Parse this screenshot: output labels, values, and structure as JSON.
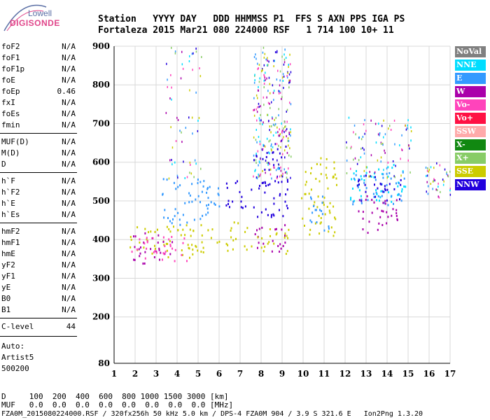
{
  "logo": {
    "line1": "Lowell",
    "line2": "DIGISONDE",
    "accent_color": "#e0458a",
    "text_color": "#5b6fa5"
  },
  "header": {
    "line1": "Station   YYYY DAY   DDD HHMMSS P1  FFS S AXN PPS IGA PS",
    "line2": "Fortaleza 2015 Mar21 080 224000 RSF   1 714 100 10+ 11"
  },
  "params": [
    {
      "name": "foF2",
      "value": "N/A"
    },
    {
      "name": "foF1",
      "value": "N/A"
    },
    {
      "name": "foF1p",
      "value": "N/A"
    },
    {
      "name": "foE",
      "value": "N/A"
    },
    {
      "name": "foEp",
      "value": "0.46"
    },
    {
      "name": "fxI",
      "value": "N/A"
    },
    {
      "name": "foEs",
      "value": "N/A"
    },
    {
      "name": "fmin",
      "value": "N/A"
    },
    {
      "name": "MUF(D)",
      "value": "N/A"
    },
    {
      "name": "M(D)",
      "value": "N/A"
    },
    {
      "name": "D",
      "value": "N/A"
    },
    {
      "name": "h`F",
      "value": "N/A"
    },
    {
      "name": "h`F2",
      "value": "N/A"
    },
    {
      "name": "h`E",
      "value": "N/A"
    },
    {
      "name": "h`Es",
      "value": "N/A"
    },
    {
      "name": "hmF2",
      "value": "N/A"
    },
    {
      "name": "hmF1",
      "value": "N/A"
    },
    {
      "name": "hmE",
      "value": "N/A"
    },
    {
      "name": "yF2",
      "value": "N/A"
    },
    {
      "name": "yF1",
      "value": "N/A"
    },
    {
      "name": "yE",
      "value": "N/A"
    },
    {
      "name": "B0",
      "value": "N/A"
    },
    {
      "name": "B1",
      "value": "N/A"
    },
    {
      "name": "C-level",
      "value": "44"
    }
  ],
  "auto": {
    "label": "Auto:",
    "software": "Artist5",
    "version": "500200"
  },
  "legend": [
    {
      "label": "NoVal",
      "color": "#808080"
    },
    {
      "label": "NNE",
      "color": "#00ddff"
    },
    {
      "label": "E",
      "color": "#3399ff"
    },
    {
      "label": "W",
      "color": "#aa00aa"
    },
    {
      "label": "Vo-",
      "color": "#ff44bb"
    },
    {
      "label": "Vo+",
      "color": "#ff1144"
    },
    {
      "label": "SSW",
      "color": "#ffaaaa"
    },
    {
      "label": "X-",
      "color": "#118811"
    },
    {
      "label": "X+",
      "color": "#88cc66"
    },
    {
      "label": "SSE",
      "color": "#cccc00"
    },
    {
      "label": "NNW",
      "color": "#2200dd"
    }
  ],
  "footer": {
    "d_row": "D     100  200  400  600  800 1000 1500 3000 [km]",
    "muf_row": "MUF   0.0  0.0  0.0  0.0  0.0  0.0  0.0  0.0 [MHz]",
    "file_row": "FZA0M_2015080224000.RSF / 320fx256h 50 kHz 5.0 km / DPS-4 FZA0M 904 / 3.9 S 321.6 E   Ion2Png 1.3.20"
  },
  "chart_data": {
    "type": "scatter",
    "x_ticks": [
      1,
      2,
      3,
      4,
      5,
      6,
      7,
      8,
      9,
      10,
      11,
      12,
      13,
      14,
      15,
      16,
      17
    ],
    "y_ticks": [
      80,
      200,
      300,
      400,
      500,
      600,
      700,
      800,
      900
    ],
    "xlim": [
      1,
      17
    ],
    "ylim": [
      80,
      900
    ],
    "grid": true,
    "legend_position": "right",
    "clusters": [
      {
        "direction": "SSE",
        "freq": [
          1.7,
          6.0
        ],
        "height": [
          355,
          440
        ]
      },
      {
        "direction": "W",
        "freq": [
          1.7,
          3.8
        ],
        "height": [
          340,
          420
        ]
      },
      {
        "direction": "Vo-",
        "freq": [
          1.7,
          4.5
        ],
        "height": [
          345,
          410
        ]
      },
      {
        "direction": "E",
        "freq": [
          3.2,
          6.0
        ],
        "height": [
          440,
          560
        ]
      },
      {
        "direction": "NNW",
        "freq": [
          6.3,
          7.4
        ],
        "height": [
          480,
          560
        ]
      },
      {
        "direction": "SSE",
        "freq": [
          6.3,
          7.4
        ],
        "height": [
          370,
          450
        ]
      },
      {
        "direction": "NNW",
        "freq": [
          7.5,
          9.3
        ],
        "height": [
          460,
          650
        ]
      },
      {
        "direction": "W",
        "freq": [
          7.5,
          9.3
        ],
        "height": [
          370,
          440
        ]
      },
      {
        "direction": "SSE",
        "freq": [
          7.5,
          9.3
        ],
        "height": [
          365,
          430
        ]
      },
      {
        "direction": "SSE",
        "freq": [
          9.9,
          11.6
        ],
        "height": [
          410,
          620
        ]
      },
      {
        "direction": "E",
        "freq": [
          10.3,
          11.3
        ],
        "height": [
          420,
          520
        ]
      },
      {
        "direction": "NNE",
        "freq": [
          12.2,
          14.9
        ],
        "height": [
          500,
          600
        ]
      },
      {
        "direction": "E",
        "freq": [
          12.3,
          14.8
        ],
        "height": [
          490,
          580
        ]
      },
      {
        "direction": "NNW",
        "freq": [
          12.5,
          14.7
        ],
        "height": [
          500,
          570
        ]
      },
      {
        "direction": "W",
        "freq": [
          12.6,
          14.6
        ],
        "height": [
          420,
          520
        ]
      }
    ]
  }
}
